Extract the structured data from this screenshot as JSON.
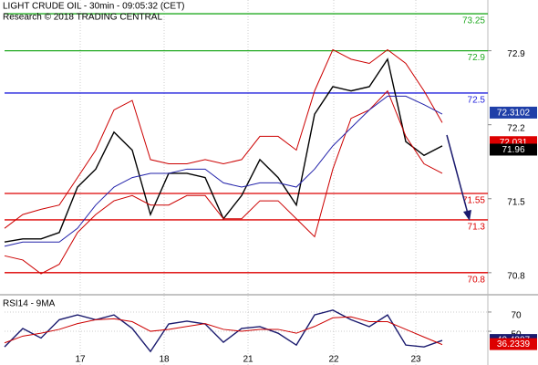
{
  "chart_data": [
    {
      "type": "line",
      "title": "LIGHT CRUDE OIL - 30min - 09:05:32 (CET)",
      "subtitle": "Research © 2018 TRADING CENTRAL",
      "x": [
        0,
        2,
        4,
        6,
        8,
        10,
        12,
        14,
        16,
        18,
        20,
        22,
        24,
        26,
        28,
        30,
        32,
        34,
        36,
        38,
        40,
        42,
        44,
        46,
        48
      ],
      "xlim": [
        0,
        53
      ],
      "ylim": [
        70.6,
        73.38
      ],
      "yticks": [
        72.9,
        72.2,
        71.5,
        70.8
      ],
      "series": [
        {
          "color": "#000000",
          "values": [
            71.09,
            71.12,
            71.12,
            71.18,
            71.61,
            71.78,
            72.13,
            71.96,
            71.35,
            71.74,
            71.74,
            71.7,
            71.31,
            71.53,
            71.87,
            71.7,
            71.44,
            72.3,
            72.56,
            72.52,
            72.56,
            72.82,
            72.04,
            71.91,
            72.0
          ]
        },
        {
          "color": "#cc0000",
          "values": [
            71.22,
            71.35,
            71.4,
            71.44,
            71.7,
            71.96,
            72.34,
            72.43,
            71.87,
            71.83,
            71.83,
            71.87,
            71.83,
            71.87,
            72.09,
            72.09,
            71.96,
            72.52,
            72.91,
            72.82,
            72.78,
            72.91,
            72.78,
            72.52,
            72.22
          ]
        },
        {
          "color": "#cc0000",
          "values": [
            70.96,
            70.92,
            70.79,
            70.88,
            71.18,
            71.35,
            71.48,
            71.53,
            71.44,
            71.44,
            71.53,
            71.53,
            71.31,
            71.31,
            71.48,
            71.48,
            71.31,
            71.14,
            71.78,
            72.26,
            72.34,
            72.52,
            72.09,
            71.83,
            71.74
          ]
        },
        {
          "color": "#2222aa",
          "values": [
            71.05,
            71.09,
            71.09,
            71.09,
            71.22,
            71.44,
            71.61,
            71.7,
            71.74,
            71.74,
            71.78,
            71.78,
            71.65,
            71.61,
            71.65,
            71.65,
            71.61,
            71.78,
            72.0,
            72.17,
            72.34,
            72.47,
            72.47,
            72.39,
            72.3
          ]
        }
      ],
      "levels": [
        {
          "value": 73.25,
          "color": "#22aa22"
        },
        {
          "value": 72.9,
          "color": "#22aa22"
        },
        {
          "value": 72.5,
          "color": "#2222dd"
        },
        {
          "value": 71.55,
          "color": "#dd0000"
        },
        {
          "value": 71.3,
          "color": "#dd0000"
        },
        {
          "value": 70.8,
          "color": "#dd0000"
        }
      ],
      "price_tags": [
        {
          "value": 72.3102,
          "color": "#1f3fa8"
        },
        {
          "value": 72.031,
          "color": "#dd0000"
        },
        {
          "value": 71.96,
          "color": "#000000"
        }
      ]
    },
    {
      "type": "line",
      "title": "RSI14 - 9MA",
      "x": [
        0,
        2,
        4,
        6,
        8,
        10,
        12,
        14,
        16,
        18,
        20,
        22,
        24,
        26,
        28,
        30,
        32,
        34,
        36,
        38,
        40,
        42,
        44,
        46,
        48
      ],
      "xlim": [
        0,
        53
      ],
      "xticks": [
        {
          "value": 8.3,
          "label": "17"
        },
        {
          "value": 17.5,
          "label": "18"
        },
        {
          "value": 26.7,
          "label": "21"
        },
        {
          "value": 36.1,
          "label": "22"
        },
        {
          "value": 45.1,
          "label": "23"
        }
      ],
      "ylim": [
        15,
        87
      ],
      "yticks": [
        70,
        50
      ],
      "series": [
        {
          "color": "#1a1a6e",
          "values": [
            33.8,
            52.9,
            43,
            62,
            67,
            62,
            67,
            53,
            29,
            57.6,
            60.5,
            57.6,
            38.6,
            53,
            54.8,
            48,
            35.7,
            67,
            72,
            62,
            54.8,
            67,
            35.7,
            33.8,
            40.5
          ]
        },
        {
          "color": "#cc0000",
          "values": [
            38,
            45,
            48,
            52,
            58,
            62,
            63,
            60,
            50,
            52,
            55,
            58,
            52,
            50,
            52,
            52,
            48,
            55,
            64,
            65,
            60,
            60,
            52,
            44,
            36.2
          ]
        }
      ],
      "price_tags": [
        {
          "value": 40.4887,
          "color": "#1a1a6e"
        },
        {
          "value": 36.2339,
          "color": "#dd0000"
        }
      ]
    }
  ]
}
